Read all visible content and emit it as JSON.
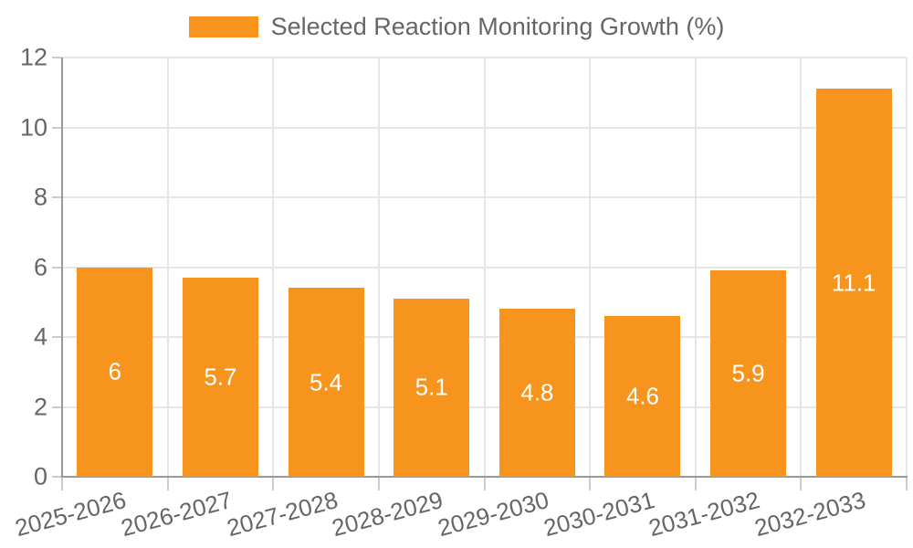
{
  "chart_data": {
    "type": "bar",
    "title": "",
    "legend": "Selected Reaction Monitoring Growth (%)",
    "legend_position": "top",
    "categories": [
      "2025-2026",
      "2026-2027",
      "2027-2028",
      "2028-2029",
      "2029-2030",
      "2030-2031",
      "2031-2032",
      "2032-2033"
    ],
    "values": [
      6,
      5.7,
      5.4,
      5.1,
      4.8,
      4.6,
      5.9,
      11.1
    ],
    "xlabel": "",
    "ylabel": "",
    "ylim": [
      0,
      12
    ],
    "yticks": [
      0,
      2,
      4,
      6,
      8,
      10,
      12
    ],
    "grid": true,
    "x_label_rotation_deg": -15,
    "colors": {
      "bar": "#f7941e",
      "grid": "#e6e6e6",
      "axis": "#999999",
      "tick": "#cccccc",
      "text": "#666666",
      "bar_label": "#ffffff"
    }
  }
}
